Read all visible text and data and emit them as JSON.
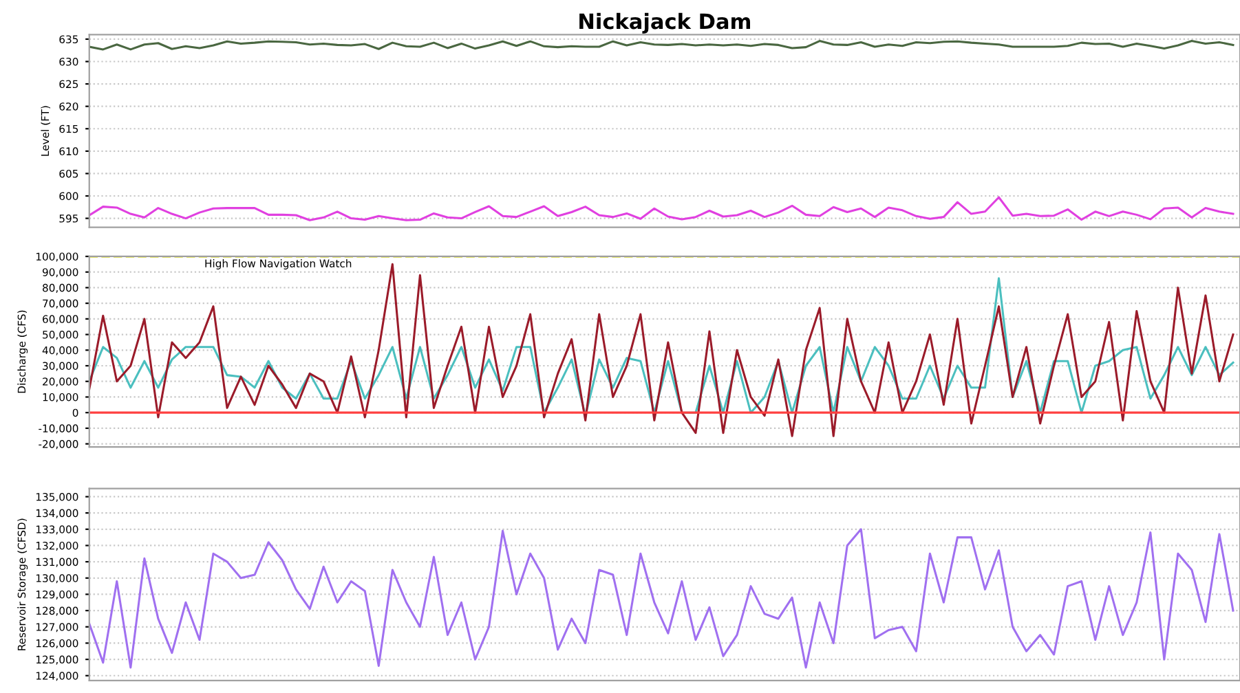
{
  "chart_data": [
    {
      "type": "line",
      "title": "Nickajack Dam",
      "ylabel": "Level (FT)",
      "categories": [
        null,
        null,
        null,
        null,
        null,
        null,
        null,
        null,
        null,
        null,
        null,
        null,
        null,
        null,
        null,
        null,
        null,
        null,
        null,
        null,
        null,
        null,
        null,
        null,
        null,
        null,
        null,
        null,
        null,
        null,
        null,
        null,
        null,
        null,
        null,
        null,
        null,
        null,
        null,
        null,
        null,
        null,
        null,
        null,
        null,
        null,
        null,
        null,
        null,
        null,
        null,
        null,
        null,
        null,
        null,
        null,
        null,
        null,
        null,
        null,
        null,
        null,
        null,
        null,
        null,
        null,
        null,
        null,
        null,
        null,
        null,
        null,
        null,
        null,
        null,
        null,
        null,
        null,
        null,
        null,
        null,
        null,
        null,
        null
      ],
      "series": [
        {
          "color": "#4a6741",
          "values": [
            633.3,
            632.7,
            633.8,
            632.7,
            633.8,
            634.1,
            632.8,
            633.4,
            633,
            633.6,
            634.5,
            634,
            634.2,
            634.5,
            634.4,
            634.3,
            633.8,
            634,
            633.7,
            633.6,
            633.9,
            632.8,
            634.2,
            633.4,
            633.3,
            634.2,
            633,
            634,
            632.9,
            633.6,
            634.5,
            633.5,
            634.5,
            633.4,
            633.2,
            633.4,
            633.3,
            633.3,
            634.5,
            633.6,
            634.3,
            633.8,
            633.7,
            633.9,
            633.6,
            633.8,
            633.6,
            633.8,
            633.5,
            633.9,
            633.7,
            633,
            633.2,
            634.6,
            633.8,
            633.7,
            634.3,
            633.3,
            633.8,
            633.5,
            634.3,
            634.1,
            634.4,
            634.5,
            634.2,
            634,
            633.8,
            633.3,
            633.3,
            633.3,
            633.3,
            633.5,
            634.2,
            633.9,
            634,
            633.3,
            634,
            633.5,
            632.9,
            633.6,
            634.6,
            634,
            634.3,
            633.7
          ]
        },
        {
          "color": "#e040e0",
          "values": [
            595.7,
            597.6,
            597.4,
            596,
            595.2,
            597.3,
            596,
            595,
            596.3,
            597.2,
            597.3,
            597.3,
            597.3,
            595.8,
            595.8,
            595.7,
            594.6,
            595.2,
            596.5,
            595,
            594.7,
            595.5,
            595,
            594.6,
            594.7,
            596.1,
            595.2,
            595,
            596.4,
            597.7,
            595.5,
            595.3,
            596.5,
            597.7,
            595.5,
            596.4,
            597.6,
            595.7,
            595.3,
            596.1,
            594.9,
            597.2,
            595.4,
            594.8,
            595.3,
            596.7,
            595.4,
            595.7,
            596.7,
            595.3,
            596.3,
            597.8,
            595.8,
            595.5,
            597.5,
            596.4,
            597.2,
            595.3,
            597.4,
            596.8,
            595.5,
            594.9,
            595.3,
            598.6,
            596,
            596.5,
            599.7,
            595.6,
            596,
            595.5,
            595.6,
            597,
            594.7,
            596.5,
            595.5,
            596.5,
            595.8,
            594.8,
            597.2,
            597.4,
            595.2,
            597.3,
            596.5,
            596
          ]
        }
      ],
      "ylim": [
        593,
        636
      ],
      "yticks": [
        595,
        600,
        605,
        610,
        615,
        620,
        625,
        630,
        635
      ],
      "grid": "y",
      "tick_labels": "y"
    },
    {
      "type": "line",
      "ylabel": "Discharge (CFS)",
      "categories": [
        null,
        null,
        null,
        null,
        null,
        null,
        null,
        null,
        null,
        null,
        null,
        null,
        null,
        null,
        null,
        null,
        null,
        null,
        null,
        null,
        null,
        null,
        null,
        null,
        null,
        null,
        null,
        null,
        null,
        null,
        null,
        null,
        null,
        null,
        null,
        null,
        null,
        null,
        null,
        null,
        null,
        null,
        null,
        null,
        null,
        null,
        null,
        null,
        null,
        null,
        null,
        null,
        null,
        null,
        null,
        null,
        null,
        null,
        null,
        null,
        null,
        null,
        null,
        null,
        null,
        null,
        null,
        null,
        null,
        null,
        null,
        null,
        null,
        null,
        null,
        null,
        null,
        null,
        null,
        null,
        null,
        null,
        null,
        null
      ],
      "series": [
        {
          "color": "#4bbfbf",
          "values": [
            20000,
            42000,
            35000,
            16000,
            33000,
            16000,
            34000,
            42000,
            42000,
            42000,
            24000,
            23000,
            16000,
            33000,
            16000,
            9000,
            25000,
            9000,
            9000,
            33000,
            9000,
            24000,
            42000,
            9000,
            42000,
            9000,
            24000,
            42000,
            16000,
            34000,
            14000,
            42000,
            42000,
            0,
            16000,
            34000,
            -2000,
            34000,
            16000,
            35000,
            33000,
            0,
            33000,
            0,
            0,
            30000,
            0,
            33000,
            0,
            10000,
            33000,
            0,
            30000,
            42000,
            0,
            42000,
            20000,
            42000,
            30000,
            9000,
            9000,
            30000,
            9000,
            30000,
            16000,
            16000,
            86000,
            10000,
            33000,
            0,
            33000,
            33000,
            0,
            30000,
            33000,
            40000,
            42000,
            9000,
            24000,
            42000,
            24000,
            42000,
            24000,
            32000
          ]
        },
        {
          "color": "#9b1b2a",
          "values": [
            15000,
            62000,
            20000,
            30000,
            60000,
            -3000,
            45000,
            35000,
            45000,
            68000,
            3000,
            23000,
            5000,
            30000,
            18000,
            3000,
            25000,
            20000,
            0,
            36000,
            -3000,
            40000,
            95000,
            -3000,
            88000,
            3000,
            30000,
            55000,
            0,
            55000,
            10000,
            30000,
            63000,
            -3000,
            25000,
            47000,
            -5000,
            63000,
            10000,
            30000,
            63000,
            -5000,
            45000,
            0,
            -13000,
            52000,
            -13000,
            40000,
            10000,
            -2000,
            34000,
            -15000,
            40000,
            67000,
            -15000,
            60000,
            20000,
            0,
            45000,
            0,
            20000,
            50000,
            5000,
            60000,
            -7000,
            30000,
            68000,
            10000,
            42000,
            -7000,
            30000,
            63000,
            10000,
            20000,
            58000,
            -5000,
            65000,
            20000,
            0,
            80000,
            25000,
            75000,
            20000,
            50000
          ]
        }
      ],
      "ref_lines": [
        {
          "axis": "y",
          "value": 0,
          "color": "#ff4040",
          "line_style": "solid"
        },
        {
          "axis": "y",
          "value": 100000,
          "label": "High Flow Navigation Watch",
          "color": "#e0e040",
          "line_style": "dashed"
        }
      ],
      "ylim": [
        -22000,
        100000
      ],
      "yticks": [
        {
          "value": -20000,
          "label": "-20,000"
        },
        {
          "value": -10000,
          "label": "-10,000"
        },
        0,
        {
          "value": 10000,
          "label": "10,000"
        },
        {
          "value": 20000,
          "label": "20,000"
        },
        {
          "value": 30000,
          "label": "30,000"
        },
        {
          "value": 40000,
          "label": "40,000"
        },
        {
          "value": 50000,
          "label": "50,000"
        },
        {
          "value": 60000,
          "label": "60,000"
        },
        {
          "value": 70000,
          "label": "70,000"
        },
        {
          "value": 80000,
          "label": "80,000"
        },
        {
          "value": 90000,
          "label": "90,000"
        },
        {
          "value": 100000,
          "label": "100,000"
        }
      ],
      "grid": "y",
      "tick_labels": "y"
    },
    {
      "type": "line",
      "ylabel": "Reservoir Storage (CFSD)",
      "categories": [
        null,
        null,
        null,
        null,
        null,
        null,
        null,
        null,
        null,
        null,
        null,
        null,
        null,
        null,
        null,
        null,
        null,
        null,
        null,
        null,
        null,
        null,
        null,
        null,
        null,
        null,
        null,
        null,
        null,
        null,
        null,
        null,
        null,
        null,
        null,
        null,
        null,
        null,
        null,
        null,
        null,
        null,
        null,
        null,
        null,
        null,
        null,
        null,
        null,
        null,
        null,
        null,
        null,
        null,
        null,
        null,
        null,
        null,
        null,
        null,
        null,
        null,
        null,
        null,
        null,
        null,
        null,
        null,
        null,
        null,
        null,
        null,
        null,
        null,
        null,
        null,
        null,
        null,
        null,
        null,
        null,
        null,
        null,
        null
      ],
      "series": [
        {
          "color": "#a070f0",
          "values": [
            127200,
            124800,
            129800,
            124500,
            131200,
            127500,
            125400,
            128500,
            126200,
            131500,
            131000,
            130000,
            130200,
            132200,
            131100,
            129300,
            128100,
            130700,
            128500,
            129800,
            129200,
            124600,
            130500,
            128500,
            127000,
            131300,
            126500,
            128500,
            125000,
            127000,
            132900,
            129000,
            131500,
            130000,
            125600,
            127500,
            126000,
            130500,
            130200,
            126500,
            131500,
            128500,
            126600,
            129800,
            126200,
            128200,
            125200,
            126500,
            129500,
            127800,
            127500,
            128800,
            124500,
            128500,
            126000,
            132000,
            133000,
            126300,
            126800,
            127000,
            125500,
            131500,
            128500,
            132500,
            132500,
            129300,
            131700,
            127000,
            125500,
            126500,
            125300,
            129500,
            129800,
            126200,
            129500,
            126500,
            128500,
            132800,
            125000,
            131500,
            130500,
            127300,
            132700,
            128000
          ]
        }
      ],
      "ylim": [
        123700,
        135500
      ],
      "yticks": [
        {
          "value": 124000,
          "label": "124,000"
        },
        {
          "value": 125000,
          "label": "125,000"
        },
        {
          "value": 126000,
          "label": "126,000"
        },
        {
          "value": 127000,
          "label": "127,000"
        },
        {
          "value": 128000,
          "label": "128,000"
        },
        {
          "value": 129000,
          "label": "129,000"
        },
        {
          "value": 130000,
          "label": "130,000"
        },
        {
          "value": 131000,
          "label": "131,000"
        },
        {
          "value": 132000,
          "label": "132,000"
        },
        {
          "value": 133000,
          "label": "133,000"
        },
        {
          "value": 134000,
          "label": "134,000"
        },
        {
          "value": 135000,
          "label": "135,000"
        }
      ],
      "grid": "y",
      "tick_labels": "y"
    }
  ]
}
